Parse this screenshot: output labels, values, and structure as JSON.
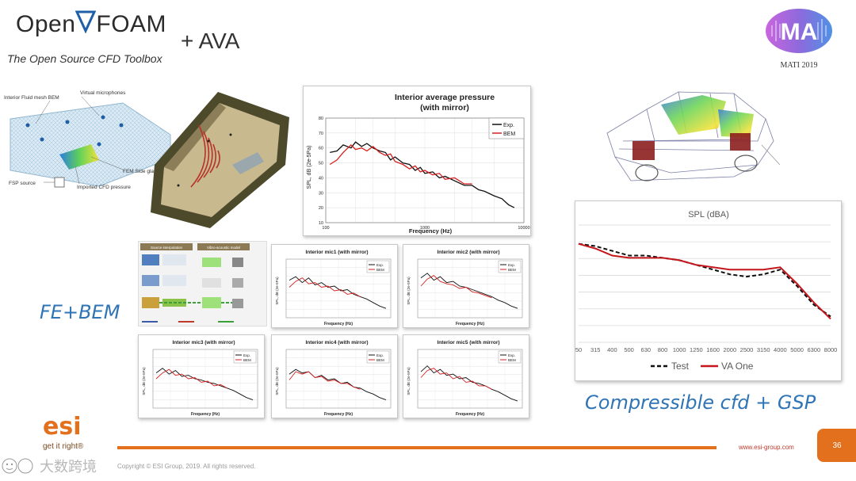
{
  "header": {
    "logo_open": "Open",
    "logo_foam": "FOAM",
    "tagline": "The Open Source CFD Toolbox",
    "plus_ava": "+ AVA",
    "conference_label": "MATI 2019",
    "conference_logo_text": "MA"
  },
  "mesh_figure": {
    "labels": [
      "Interior Fluid mesh BEM",
      "Virtual microphones",
      "FEM Side glass",
      "FSP source",
      "Imported CFD pressure"
    ]
  },
  "main_chart": {
    "title_line1": "Interior average pressure",
    "title_line2": "(with mirror)",
    "ylabel": "SPL, dB (2e-5Pa)",
    "xlabel": "Frequency (Hz)",
    "yticks": [
      "80",
      "70",
      "60",
      "50",
      "40",
      "30",
      "20",
      "10"
    ],
    "xticks": [
      "100",
      "1000",
      "10000"
    ],
    "legend": [
      "Exp.",
      "BEM"
    ]
  },
  "mic_charts": [
    {
      "title": "Interior mic1 (with mirror)"
    },
    {
      "title": "Interior mic2 (with mirror)"
    },
    {
      "title": "Interior mic3 (with mirror)"
    },
    {
      "title": "Interior mic4 (with mirror)"
    },
    {
      "title": "Interior mic5 (with mirror)"
    }
  ],
  "mic_common": {
    "ylabel": "SPL, dB (2e-5Pa)",
    "xlabel": "Frequency (Hz)",
    "legend": [
      "Exp.",
      "BEM"
    ]
  },
  "workflow": {
    "box1_title": "Source interpolation",
    "box2_title": "Vibro-acoustic model"
  },
  "fe_bem_label": "FE+BEM",
  "spl_chart": {
    "title": "SPL (dBA)",
    "legend": [
      "Test",
      "VA One"
    ]
  },
  "compressible_label": "Compressible cfd + GSP",
  "footer": {
    "esi_logo": "esi",
    "esi_tagline": "get it right®",
    "url": "www.esi-group.com",
    "page_number": "36",
    "copyright": "Copyright © ESI Group, 2019. All rights reserved.",
    "watermark": "大数跨境"
  },
  "chart_data": [
    {
      "type": "line",
      "title": "Interior average pressure (with mirror)",
      "xlabel": "Frequency (Hz)",
      "ylabel": "SPL, dB (2e-5Pa)",
      "xscale": "log",
      "xlim": [
        100,
        10000
      ],
      "ylim": [
        10,
        80
      ],
      "series": [
        {
          "name": "Exp.",
          "color": "#111111",
          "x": [
            110,
            130,
            150,
            180,
            200,
            230,
            260,
            300,
            350,
            400,
            450,
            500,
            600,
            700,
            800,
            900,
            1000,
            1200,
            1400,
            1600,
            2000,
            2500,
            3000,
            3500,
            4000,
            5000,
            6000,
            7000,
            8000
          ],
          "y": [
            57,
            58,
            62,
            60,
            64,
            61,
            63,
            60,
            58,
            57,
            52,
            54,
            50,
            49,
            45,
            47,
            43,
            44,
            40,
            41,
            38,
            35,
            35,
            32,
            31,
            28,
            26,
            22,
            20
          ]
        },
        {
          "name": "BEM",
          "color": "#d62020",
          "x": [
            110,
            130,
            150,
            180,
            200,
            230,
            260,
            300,
            350,
            400,
            450,
            500,
            600,
            700,
            800,
            900,
            1000,
            1200,
            1400,
            1600,
            2000,
            2500,
            3000
          ],
          "y": [
            49,
            52,
            57,
            62,
            59,
            60,
            58,
            61,
            57,
            55,
            56,
            51,
            49,
            46,
            48,
            44,
            45,
            42,
            43,
            39,
            40,
            36,
            36
          ]
        }
      ]
    },
    {
      "type": "line",
      "title": "SPL (dBA)",
      "categories": [
        "50",
        "315",
        "400",
        "500",
        "630",
        "800",
        "1000",
        "1250",
        "1600",
        "2000",
        "2500",
        "3150",
        "4000",
        "5000",
        "6300",
        "8000"
      ],
      "series": [
        {
          "name": "Test",
          "color": "#111111",
          "values": [
            62,
            61,
            59,
            57,
            57,
            56,
            55,
            53,
            51,
            49,
            48,
            49,
            51,
            44,
            36,
            31
          ]
        },
        {
          "name": "VA One",
          "color": "#c4161c",
          "values": [
            62,
            60,
            57,
            56,
            56,
            56,
            55,
            53,
            52,
            51,
            51,
            51,
            52,
            45,
            37,
            30
          ]
        }
      ]
    }
  ]
}
